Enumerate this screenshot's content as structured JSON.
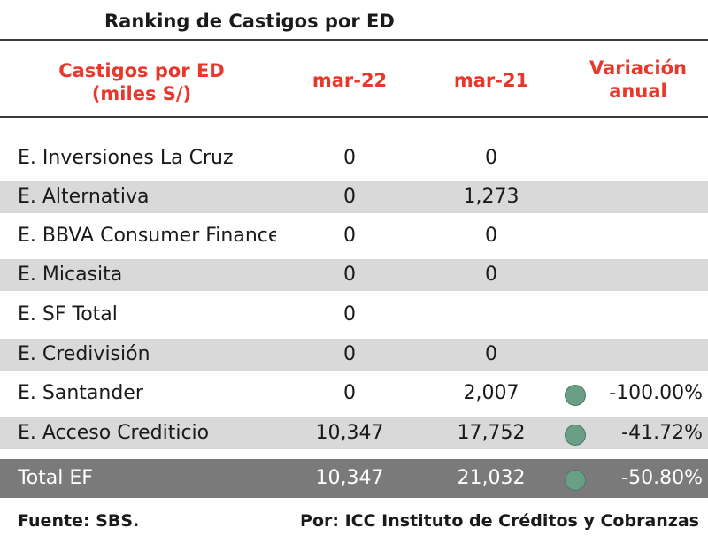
{
  "title": "Ranking de Castigos por ED",
  "headers": {
    "col_name_line1": "Castigos por ED",
    "col_name_line2": "(miles S/)",
    "col_mar22": "mar-22",
    "col_mar21": "mar-21",
    "col_var_line1": "Variación",
    "col_var_line2": "anual"
  },
  "rows": [
    {
      "name": "E. Inversiones La Cruz",
      "mar22": "0",
      "mar21": "0",
      "var": ""
    },
    {
      "name": "E. Alternativa",
      "mar22": "0",
      "mar21": "1,273",
      "var": ""
    },
    {
      "name": "E. BBVA Consumer Finance",
      "mar22": "0",
      "mar21": "0",
      "var": ""
    },
    {
      "name": "E. Micasita",
      "mar22": "0",
      "mar21": "0",
      "var": ""
    },
    {
      "name": "E. SF Total",
      "mar22": "0",
      "mar21": "",
      "var": ""
    },
    {
      "name": "E. Credivisión",
      "mar22": "0",
      "mar21": "0",
      "var": ""
    },
    {
      "name": "E. Santander",
      "mar22": "0",
      "mar21": "2,007",
      "var": "-100.00%"
    },
    {
      "name": "E. Acceso Crediticio",
      "mar22": "10,347",
      "mar21": "17,752",
      "var": "-41.72%"
    }
  ],
  "total": {
    "name": "Total EF",
    "mar22": "10,347",
    "mar21": "21,032",
    "var": "-50.80%"
  },
  "footer": {
    "source": "Fuente: SBS.",
    "credit": "Por: ICC Instituto de Créditos y Cobranzas"
  },
  "colors": {
    "header_red": "#e8382b",
    "dot_green": "#6a9e87",
    "row_shade": "#d9d9d9",
    "total_bg": "#7a7a7a"
  }
}
